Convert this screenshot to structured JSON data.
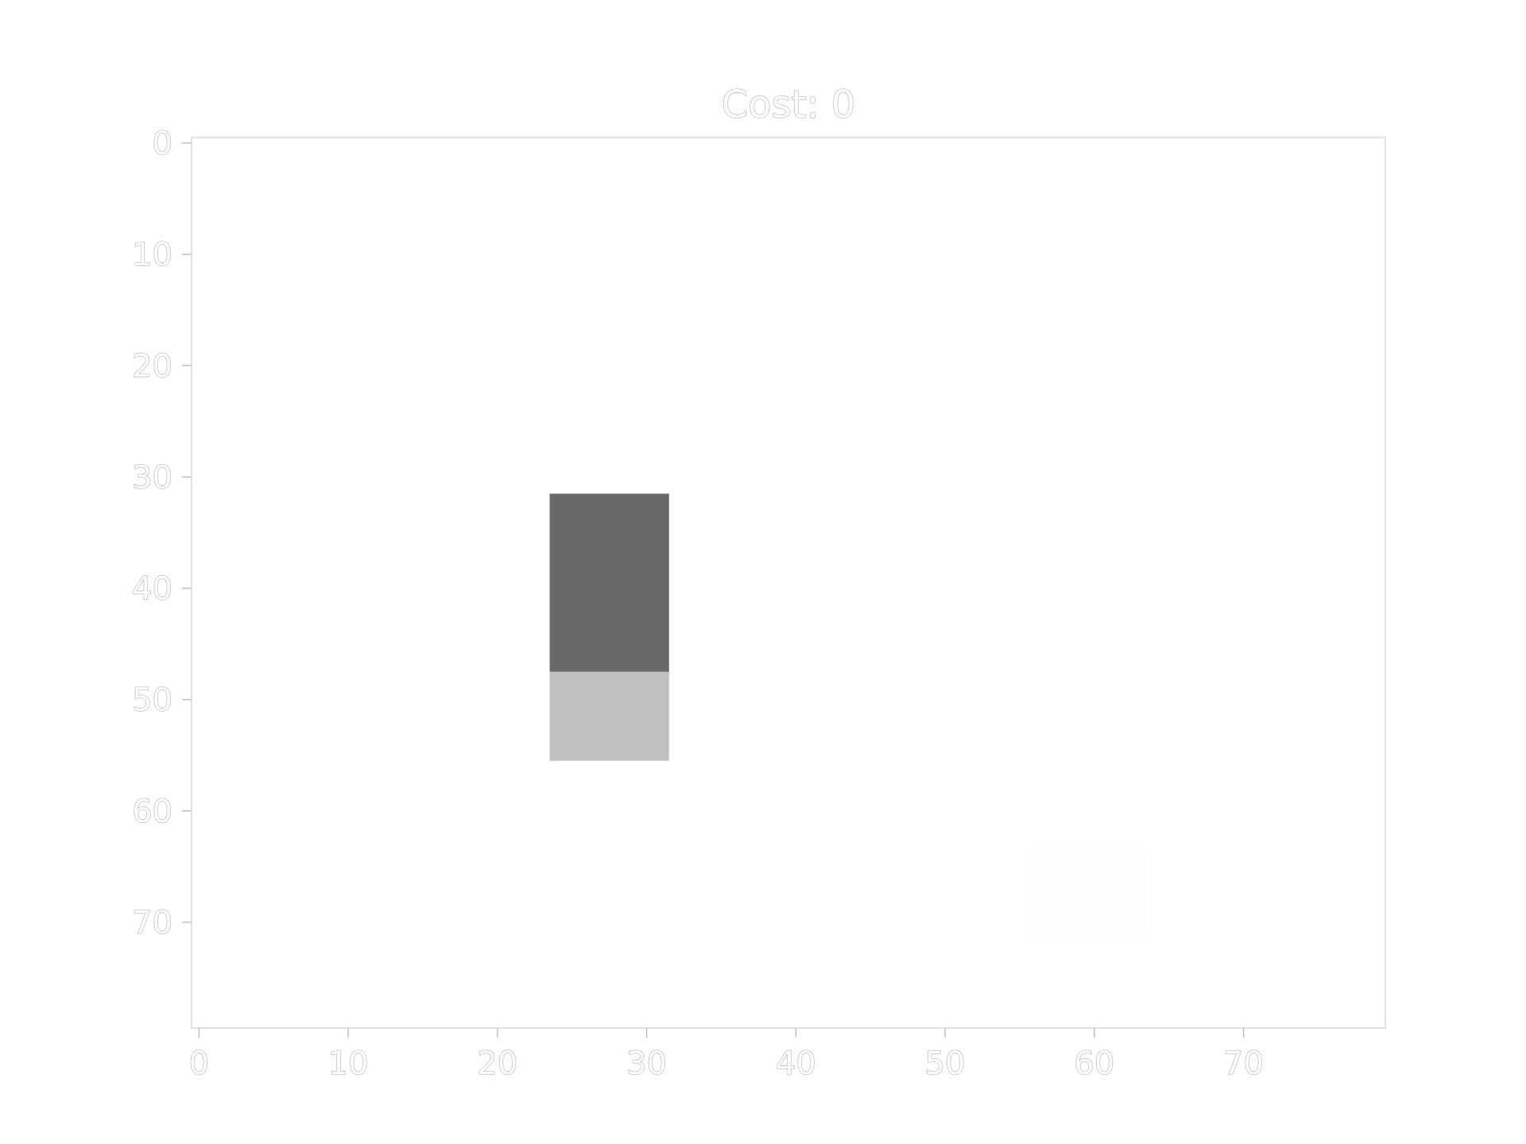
{
  "game": {
    "title": "Cost: 0",
    "grid": {
      "x_range": [
        -0.5,
        79.5
      ],
      "y_range": [
        -0.5,
        79.5
      ]
    },
    "objects": [
      {
        "name": "agent-block",
        "x0": 23.5,
        "x1": 31.5,
        "y0": 31.5,
        "y1": 47.5,
        "color": "#696969"
      },
      {
        "name": "agent-shadow",
        "x0": 23.5,
        "x1": 31.5,
        "y0": 47.5,
        "y1": 55.5,
        "color": "#c0c0c0"
      },
      {
        "name": "target-zone",
        "x0": 55.5,
        "x1": 63.5,
        "y0": 63.5,
        "y1": 71.5,
        "color": "#fdfdfd"
      }
    ]
  },
  "chart_data": {
    "type": "heatmap",
    "title": "Cost: 0",
    "xlabel": "",
    "ylabel": "",
    "xlim": [
      -0.5,
      79.5
    ],
    "ylim": [
      79.5,
      -0.5
    ],
    "x_ticks": [
      "0",
      "10",
      "20",
      "30",
      "40",
      "50",
      "60",
      "70"
    ],
    "y_ticks": [
      "0",
      "10",
      "20",
      "30",
      "40",
      "50",
      "60",
      "70"
    ],
    "x_tick_values": [
      0,
      10,
      20,
      30,
      40,
      50,
      60,
      70
    ],
    "y_tick_values": [
      0,
      10,
      20,
      30,
      40,
      50,
      60,
      70
    ],
    "grid": false
  }
}
